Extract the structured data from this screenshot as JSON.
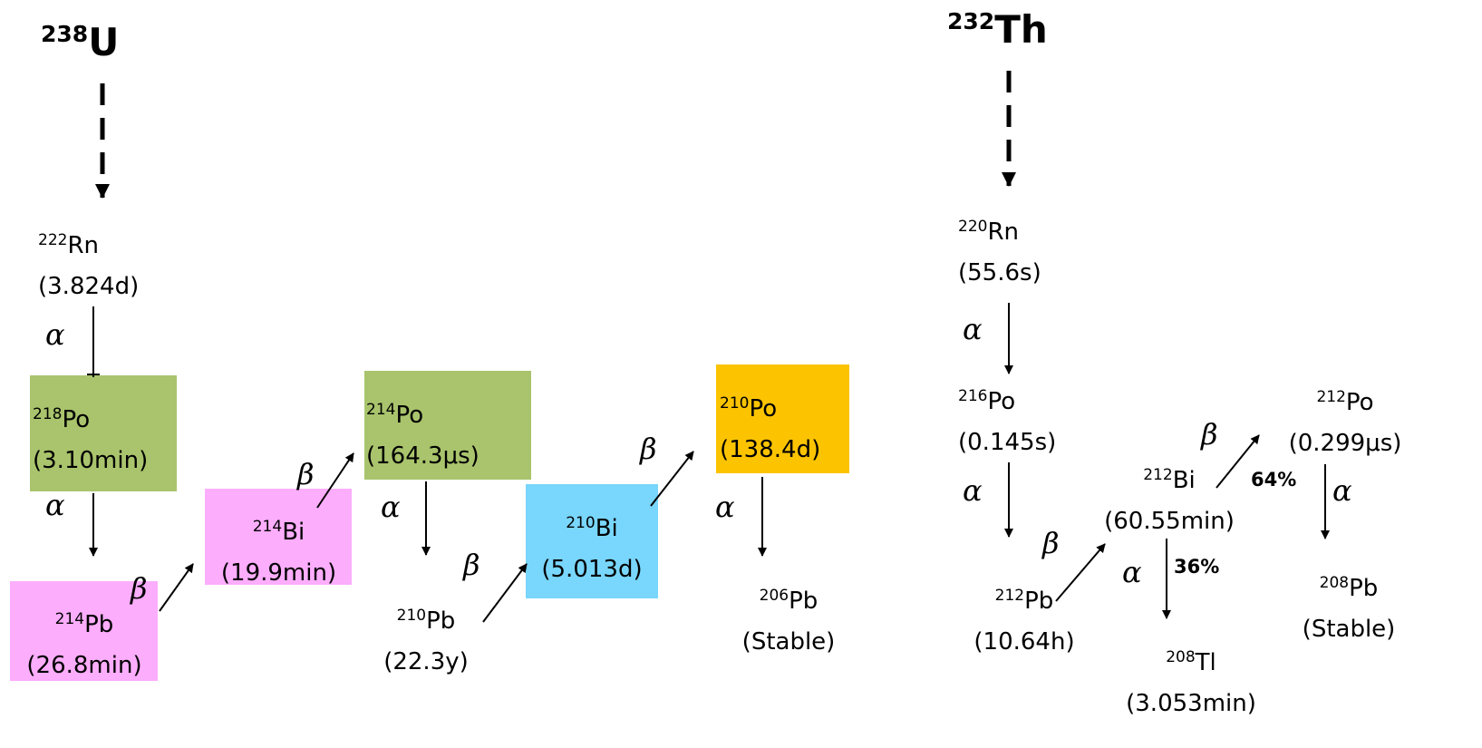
{
  "colors": {
    "green": "#a9c46c",
    "pink": "#fcadfc",
    "blue": "#79d6fc",
    "orange": "#fcc400"
  },
  "uranium": {
    "parent": {
      "mass": "238",
      "sym": "U"
    },
    "rn222": {
      "mass": "222",
      "sym": "Rn",
      "hl": "(3.824d)"
    },
    "po218": {
      "mass": "218",
      "sym": "Po",
      "hl": "(3.10min)"
    },
    "pb214": {
      "mass": "214",
      "sym": "Pb",
      "hl": "(26.8min)"
    },
    "bi214": {
      "mass": "214",
      "sym": "Bi",
      "hl": "(19.9min)"
    },
    "po214": {
      "mass": "214",
      "sym": "Po",
      "hl": "(164.3μs)"
    },
    "pb210": {
      "mass": "210",
      "sym": "Pb",
      "hl": "(22.3y)"
    },
    "bi210": {
      "mass": "210",
      "sym": "Bi",
      "hl": "(5.013d)"
    },
    "po210": {
      "mass": "210",
      "sym": "Po",
      "hl": "(138.4d)"
    },
    "pb206": {
      "mass": "206",
      "sym": "Pb",
      "hl": "(Stable)"
    }
  },
  "thorium": {
    "parent": {
      "mass": "232",
      "sym": "Th"
    },
    "rn220": {
      "mass": "220",
      "sym": "Rn",
      "hl": "(55.6s)"
    },
    "po216": {
      "mass": "216",
      "sym": "Po",
      "hl": "(0.145s)"
    },
    "pb212": {
      "mass": "212",
      "sym": "Pb",
      "hl": "(10.64h)"
    },
    "bi212": {
      "mass": "212",
      "sym": "Bi",
      "hl": "(60.55min)"
    },
    "po212": {
      "mass": "212",
      "sym": "Po",
      "hl": "(0.299μs)"
    },
    "tl208": {
      "mass": "208",
      "sym": "Tl",
      "hl": "(3.053min)"
    },
    "pb208": {
      "mass": "208",
      "sym": "Pb",
      "hl": "(Stable)"
    }
  },
  "decay": {
    "alpha": "α",
    "beta": "β"
  },
  "branch": {
    "beta_pct": "64%",
    "alpha_pct": "36%"
  }
}
